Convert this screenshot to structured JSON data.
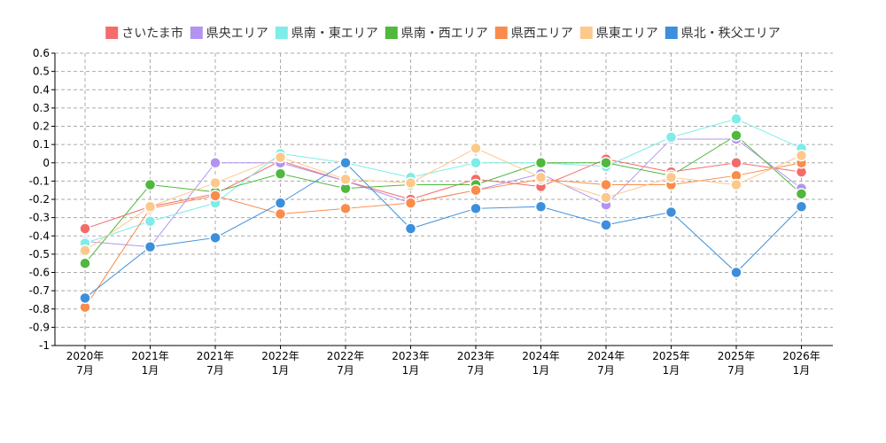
{
  "chart_data": {
    "type": "line",
    "title": "",
    "xlabel": "",
    "ylabel": "",
    "ylim": [
      -1,
      0.6
    ],
    "grid": true,
    "legend_position": "top",
    "y_ticks": [
      "0.6",
      "0.5",
      "0.4",
      "0.3",
      "0.2",
      "0.1",
      "0",
      "-0.1",
      "-0.2",
      "-0.3",
      "-0.4",
      "-0.5",
      "-0.6",
      "-0.7",
      "-0.8",
      "-0.9",
      "-1"
    ],
    "x_ticks": [
      {
        "line1": "2020年",
        "line2": "7月"
      },
      {
        "line1": "2021年",
        "line2": "1月"
      },
      {
        "line1": "2021年",
        "line2": "7月"
      },
      {
        "line1": "2022年",
        "line2": "1月"
      },
      {
        "line1": "2022年",
        "line2": "7月"
      },
      {
        "line1": "2023年",
        "line2": "1月"
      },
      {
        "line1": "2023年",
        "line2": "7月"
      },
      {
        "line1": "2024年",
        "line2": "1月"
      },
      {
        "line1": "2024年",
        "line2": "7月"
      },
      {
        "line1": "2025年",
        "line2": "1月"
      },
      {
        "line1": "2025年",
        "line2": "7月"
      },
      {
        "line1": "2026年",
        "line2": "1月"
      }
    ],
    "series": [
      {
        "name": "さいたま市",
        "color": "#f46b6b",
        "values": [
          -0.36,
          -0.24,
          -0.17,
          0.01,
          -0.1,
          -0.2,
          -0.09,
          -0.13,
          0.02,
          -0.05,
          0.0,
          -0.05
        ]
      },
      {
        "name": "県央エリア",
        "color": "#b393f0",
        "values": [
          -0.43,
          -0.46,
          0.0,
          0.0,
          -0.1,
          -0.22,
          -0.15,
          -0.06,
          -0.23,
          0.13,
          0.13,
          -0.14
        ]
      },
      {
        "name": "県南・東エリア",
        "color": "#7eece8",
        "values": [
          -0.44,
          -0.32,
          -0.22,
          0.05,
          0.0,
          -0.08,
          0.0,
          0.0,
          -0.02,
          0.14,
          0.24,
          0.08
        ]
      },
      {
        "name": "県南・西エリア",
        "color": "#4fb83d",
        "values": [
          -0.55,
          -0.12,
          -0.16,
          -0.06,
          -0.14,
          -0.12,
          -0.12,
          0.0,
          0.0,
          -0.07,
          0.15,
          -0.17
        ]
      },
      {
        "name": "県西エリア",
        "color": "#fa8c4b",
        "values": [
          -0.79,
          -0.25,
          -0.18,
          -0.28,
          -0.25,
          -0.22,
          -0.15,
          -0.09,
          -0.12,
          -0.12,
          -0.07,
          0.0
        ]
      },
      {
        "name": "県東エリア",
        "color": "#fcc98c",
        "values": [
          -0.48,
          -0.24,
          -0.11,
          0.03,
          -0.09,
          -0.11,
          0.08,
          -0.08,
          -0.19,
          -0.08,
          -0.12,
          0.04
        ]
      },
      {
        "name": "県北・秩父エリア",
        "color": "#3d8fdb",
        "values": [
          -0.74,
          -0.46,
          -0.41,
          -0.22,
          0.0,
          -0.36,
          -0.25,
          -0.24,
          -0.34,
          -0.27,
          -0.6,
          -0.24
        ]
      }
    ]
  }
}
